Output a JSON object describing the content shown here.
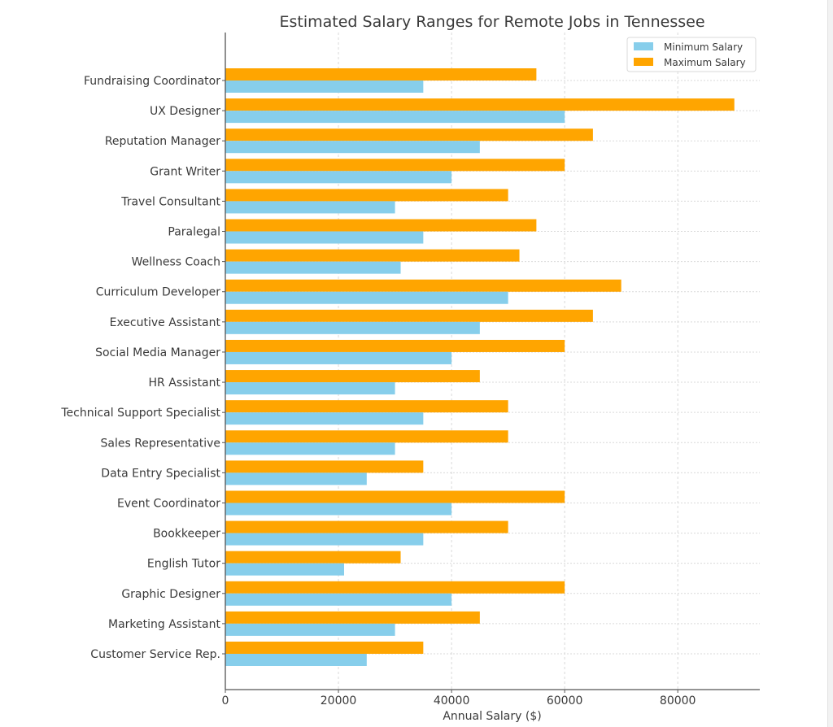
{
  "chart_data": {
    "type": "bar",
    "orientation": "horizontal",
    "title": "Estimated Salary Ranges for Remote Jobs in Tennessee",
    "xlabel": "Annual Salary ($)",
    "ylabel": "",
    "xlim": [
      0,
      94500
    ],
    "xticks": [
      0,
      20000,
      40000,
      60000,
      80000
    ],
    "xtick_labels": [
      "0",
      "20000",
      "40000",
      "60000",
      "80000"
    ],
    "grid": true,
    "legend_position": "top-right",
    "categories": [
      "Fundraising Coordinator",
      "UX Designer",
      "Reputation Manager",
      "Grant Writer",
      "Travel Consultant",
      "Paralegal",
      "Wellness Coach",
      "Curriculum Developer",
      "Executive Assistant",
      "Social Media Manager",
      "HR Assistant",
      "Technical Support Specialist",
      "Sales Representative",
      "Data Entry Specialist",
      "Event Coordinator",
      "Bookkeeper",
      "English Tutor",
      "Graphic Designer",
      "Marketing Assistant",
      "Customer Service Rep."
    ],
    "series": [
      {
        "name": "Minimum Salary",
        "color": "#87ceeb",
        "values": [
          35000,
          60000,
          45000,
          40000,
          30000,
          35000,
          31000,
          50000,
          45000,
          40000,
          30000,
          35000,
          30000,
          25000,
          40000,
          35000,
          21000,
          40000,
          30000,
          25000
        ]
      },
      {
        "name": "Maximum Salary",
        "color": "#ffa500",
        "values": [
          55000,
          90000,
          65000,
          60000,
          50000,
          55000,
          52000,
          70000,
          65000,
          60000,
          45000,
          50000,
          50000,
          35000,
          60000,
          50000,
          31000,
          60000,
          45000,
          35000
        ]
      }
    ]
  }
}
